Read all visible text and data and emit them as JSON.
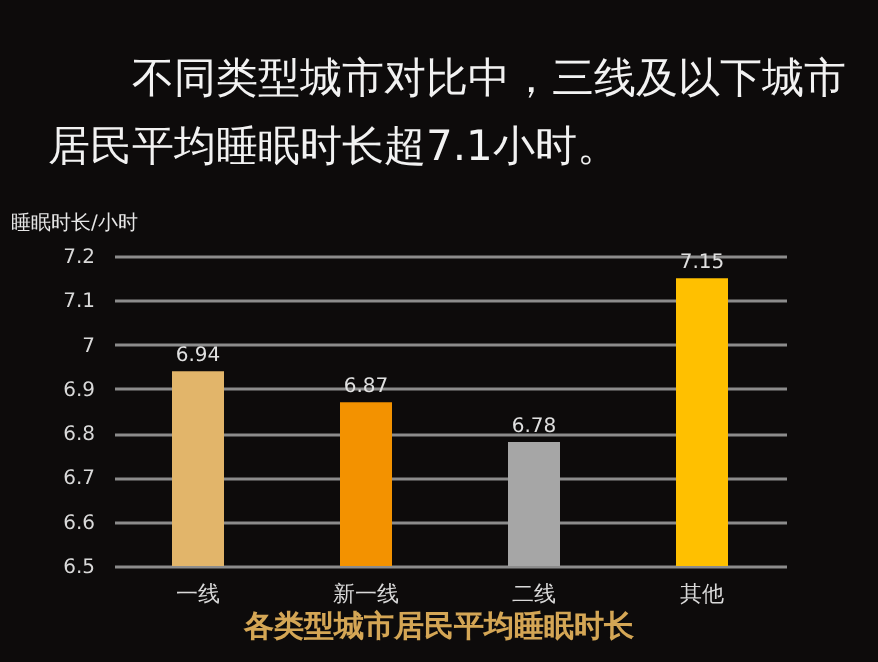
{
  "chart_data": {
    "type": "bar",
    "title": "不同类型城市对比中，三线及以下城市居民平均睡眠时长超7.1小时。",
    "ylabel": "睡眠时长/小时",
    "annotations": [
      "各类型城市居民平均睡眠时长"
    ],
    "categories": [
      "一线",
      "新一线",
      "二线",
      "其他"
    ],
    "values": [
      6.94,
      6.87,
      6.78,
      7.15
    ],
    "colors": [
      "#e2b56a",
      "#f39200",
      "#a6a6a6",
      "#ffc000"
    ],
    "ylim": [
      6.5,
      7.2
    ],
    "yticks": [
      6.5,
      6.6,
      6.7,
      6.8,
      6.9,
      7,
      7.1,
      7.2
    ],
    "grid": "y",
    "data_labels": true
  }
}
